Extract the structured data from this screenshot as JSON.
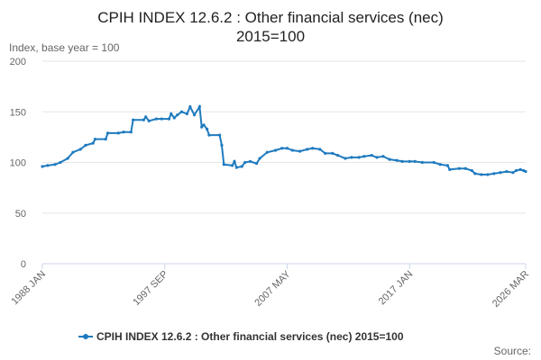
{
  "chart_data": {
    "type": "line",
    "title": [
      "CPIH INDEX 12.6.2 : Other financial services (nec)",
      "2015=100"
    ],
    "y_axis_label": "Index, base year = 100",
    "source_label": "Source:",
    "xlim": [
      "1988 JAN",
      "2026 MAR"
    ],
    "xticks": [
      "1988 JAN",
      "1997 SEP",
      "2007 MAY",
      "2017 JAN",
      "2026 MAR"
    ],
    "ylim": [
      0,
      200
    ],
    "yticks": [
      0,
      50,
      100,
      150,
      200
    ],
    "grid": true,
    "x": [
      "1988 JAN",
      "1988 JUN",
      "1989 JAN",
      "1989 JUN",
      "1990 JAN",
      "1990 JUN",
      "1991 JAN",
      "1991 JUN",
      "1992 JAN",
      "1992 MAR",
      "1993 JAN",
      "1993 MAR",
      "1994 JAN",
      "1994 JUN",
      "1995 JAN",
      "1995 MAR",
      "1996 JAN",
      "1996 MAR",
      "1996 JUN",
      "1997 JAN",
      "1997 JUN",
      "1998 JAN",
      "1998 MAR",
      "1998 JUN",
      "1998 SEP",
      "1999 JAN",
      "1999 JUN",
      "1999 SEP",
      "2000 JAN",
      "2000 JUN",
      "2000 AUG",
      "2000 OCT",
      "2001 JAN",
      "2001 MAR",
      "2002 JAN",
      "2002 MAR",
      "2002 MAY",
      "2003 JAN",
      "2003 MAR",
      "2003 MAY",
      "2003 OCT",
      "2004 JAN",
      "2004 JUN",
      "2004 DEC",
      "2005 MAR",
      "2005 OCT",
      "2006 JUN",
      "2006 DEC",
      "2007 MAY",
      "2007 OCT",
      "2008 MAY",
      "2008 DEC",
      "2009 MAY",
      "2009 DEC",
      "2010 MAY",
      "2010 DEC",
      "2011 MAY",
      "2011 DEC",
      "2012 JUN",
      "2013 JAN",
      "2013 JUN",
      "2014 JAN",
      "2014 JUN",
      "2014 DEC",
      "2015 JUN",
      "2016 JAN",
      "2016 JUN",
      "2017 JAN",
      "2017 JUN",
      "2018 JAN",
      "2018 DEC",
      "2019 JUN",
      "2020 JAN",
      "2020 MAR",
      "2020 DEC",
      "2021 JUN",
      "2021 DEC",
      "2022 MAR",
      "2022 SEP",
      "2023 MAR",
      "2023 SEP",
      "2024 MAR",
      "2024 SEP",
      "2025 MAR",
      "2025 JUN",
      "2025 OCT",
      "2026 JAN",
      "2026 MAR"
    ],
    "series": [
      {
        "name": "CPIH INDEX 12.6.2 : Other financial services (nec) 2015=100",
        "color": "#1f7bbf",
        "values": [
          96,
          97,
          98,
          100,
          104,
          110,
          113,
          117,
          119,
          123,
          123,
          129,
          129,
          130,
          130,
          142,
          142,
          145,
          141,
          143,
          143,
          143,
          148,
          144,
          147,
          150,
          148,
          155,
          147,
          155,
          135,
          137,
          133,
          127,
          127,
          117,
          98,
          97,
          101,
          95,
          96,
          100,
          101,
          99,
          104,
          110,
          112,
          114,
          114,
          112,
          111,
          113,
          114,
          113,
          109,
          109,
          107,
          104,
          105,
          105,
          106,
          107,
          105,
          106,
          103,
          102,
          101,
          101,
          101,
          100,
          100,
          98,
          97,
          93,
          94,
          94,
          92,
          89,
          88,
          88,
          89,
          90,
          91,
          90,
          92,
          93,
          92,
          91
        ]
      }
    ]
  }
}
